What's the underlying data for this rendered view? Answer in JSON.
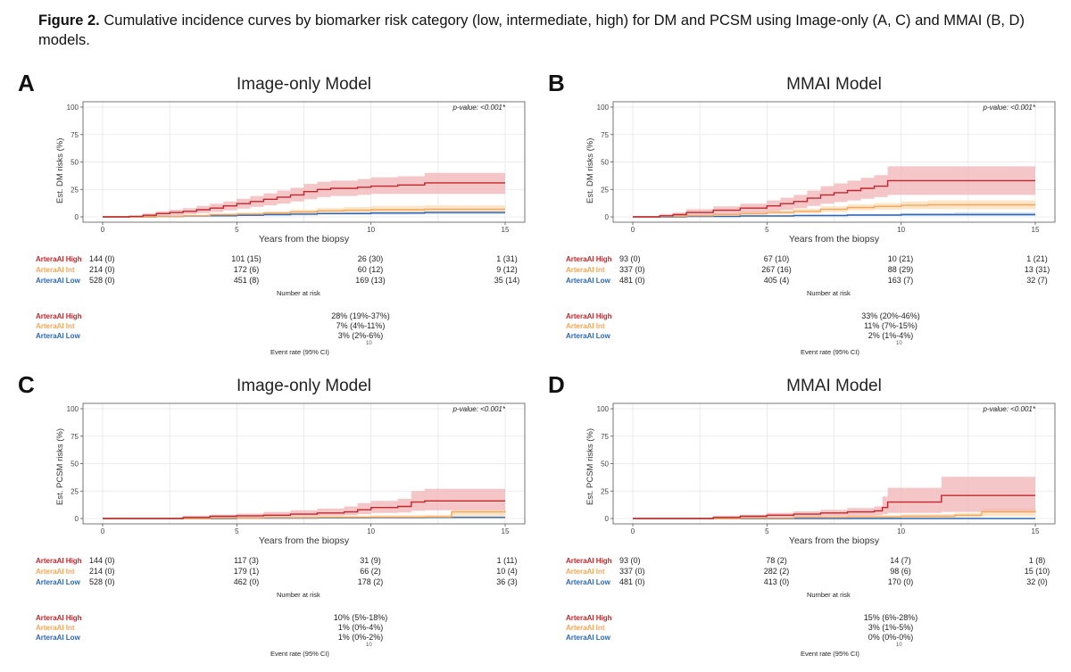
{
  "caption": {
    "bold": "Figure 2.",
    "text": " Cumulative incidence curves by biomarker risk category (low, intermediate, high) for DM and PCSM using Image-only (A, C) and MMAI (B, D) models."
  },
  "colors": {
    "high": "#c0282d",
    "high_band": "#f2b3b6",
    "int": "#f2a65a",
    "int_band": "#fbdcb6",
    "low": "#2f66b3",
    "low_band": "#b9cdea",
    "grid": "#e6e6e6",
    "axis": "#555555"
  },
  "common": {
    "xlabel": "Years from the biopsy",
    "risk_table_title": "Number at risk",
    "event_title": "Event rate (95% CI)",
    "event_tick": "10",
    "group_labels": [
      "ArteraAI High",
      "ArteraAI Int",
      "ArteraAI Low"
    ],
    "x_ticks": [
      "0",
      "5",
      "10",
      "15"
    ],
    "y_ticks": [
      "0",
      "25",
      "50",
      "75",
      "100"
    ]
  },
  "panels": [
    {
      "letter": "A",
      "title": "Image-only Model",
      "ylabel": "Est. DM risks (%)",
      "pvalue": "p-value: <0.001*",
      "risk_table": [
        [
          "144 (0)",
          "101 (15)",
          "26 (30)",
          "1 (31)"
        ],
        [
          "214 (0)",
          "172 (6)",
          "60 (12)",
          "9 (12)"
        ],
        [
          "528 (0)",
          "451 (8)",
          "169 (13)",
          "35 (14)"
        ]
      ],
      "event_rates": [
        "28% (19%-37%)",
        "7% (4%-11%)",
        "3% (2%-6%)"
      ]
    },
    {
      "letter": "B",
      "title": "MMAI Model",
      "ylabel": "Est. DM risks (%)",
      "pvalue": "p-value: <0.001*",
      "risk_table": [
        [
          "93 (0)",
          "67 (10)",
          "10 (21)",
          "1 (21)"
        ],
        [
          "337 (0)",
          "267 (16)",
          "88 (29)",
          "13 (31)"
        ],
        [
          "481 (0)",
          "405 (4)",
          "163 (7)",
          "32 (7)"
        ]
      ],
      "event_rates": [
        "33% (20%-46%)",
        "11% (7%-15%)",
        "2% (1%-4%)"
      ]
    },
    {
      "letter": "C",
      "title": "Image-only Model",
      "ylabel": "Est. PCSM risks (%)",
      "pvalue": "p-value: <0.001*",
      "risk_table": [
        [
          "144 (0)",
          "117 (3)",
          "31 (9)",
          "1 (11)"
        ],
        [
          "214 (0)",
          "179 (1)",
          "66 (2)",
          "10 (4)"
        ],
        [
          "528 (0)",
          "462 (0)",
          "178 (2)",
          "36 (3)"
        ]
      ],
      "event_rates": [
        "10% (5%-18%)",
        "1% (0%-4%)",
        "1% (0%-2%)"
      ]
    },
    {
      "letter": "D",
      "title": "MMAI Model",
      "ylabel": "Est. PCSM risks (%)",
      "pvalue": "p-value: <0.001*",
      "risk_table": [
        [
          "93 (0)",
          "78 (2)",
          "14 (7)",
          "1 (8)"
        ],
        [
          "337 (0)",
          "282 (2)",
          "98 (6)",
          "15 (10)"
        ],
        [
          "481 (0)",
          "413 (0)",
          "170 (0)",
          "32 (0)"
        ]
      ],
      "event_rates": [
        "15% (6%-28%)",
        "3% (1%-5%)",
        "0% (0%-0%)"
      ]
    }
  ],
  "chart_data": [
    {
      "type": "line",
      "title": "Image-only Model",
      "xlabel": "Years from the biopsy",
      "ylabel": "Est. DM risks (%)",
      "xlim": [
        0,
        15
      ],
      "ylim": [
        0,
        100
      ],
      "grid": true,
      "series": [
        {
          "name": "ArteraAI High",
          "x": [
            0,
            1,
            1.5,
            2,
            2.5,
            3,
            3.5,
            4,
            4.5,
            5,
            5.5,
            6,
            6.5,
            7,
            7.5,
            8,
            8.5,
            9,
            9.5,
            10,
            11,
            12,
            13,
            15
          ],
          "y": [
            0,
            0.5,
            1.5,
            3,
            4,
            5,
            6.5,
            8,
            10,
            12,
            14,
            16,
            18,
            20,
            23,
            25,
            26,
            26,
            27,
            28,
            29,
            31,
            31,
            31
          ],
          "lower": [
            0,
            0,
            0.5,
            1,
            1.5,
            2.5,
            3.5,
            4.5,
            6,
            7.5,
            9,
            10.5,
            12,
            14,
            16,
            18,
            19,
            19,
            20,
            21,
            21,
            21,
            21,
            21
          ],
          "upper": [
            0,
            1,
            3,
            5,
            6.5,
            8,
            10,
            12,
            14,
            16.5,
            19,
            21.5,
            24,
            26.5,
            30,
            32,
            33,
            33,
            34.5,
            36,
            37,
            40,
            40,
            40
          ]
        },
        {
          "name": "ArteraAI Int",
          "x": [
            0,
            2,
            3,
            4,
            5,
            6,
            7,
            8,
            9,
            10,
            12,
            15
          ],
          "y": [
            0,
            0.5,
            1,
            2,
            2.5,
            3.5,
            4.5,
            5.5,
            6,
            6.5,
            7,
            7
          ],
          "lower": [
            0,
            0,
            0.5,
            1,
            1.5,
            2,
            2.5,
            3.5,
            4,
            4.5,
            4.5,
            4.5
          ],
          "upper": [
            0,
            1,
            2,
            3,
            4,
            5,
            6.5,
            8,
            9,
            10,
            10.5,
            11
          ]
        },
        {
          "name": "ArteraAI Low",
          "x": [
            0,
            2,
            3,
            4,
            5,
            6,
            7,
            8,
            9,
            10,
            12,
            15
          ],
          "y": [
            0,
            0.3,
            0.7,
            1,
            1.5,
            2,
            2.5,
            3,
            3,
            3.5,
            4,
            4
          ],
          "lower": [
            0,
            0,
            0.3,
            0.5,
            0.8,
            1.2,
            1.5,
            2,
            2,
            2.2,
            2.5,
            2.5
          ],
          "upper": [
            0,
            0.7,
            1.2,
            1.7,
            2.3,
            3,
            3.5,
            4,
            4.3,
            5,
            5.5,
            6
          ]
        }
      ]
    },
    {
      "type": "line",
      "title": "MMAI Model",
      "xlabel": "Years from the biopsy",
      "ylabel": "Est. DM risks (%)",
      "xlim": [
        0,
        15
      ],
      "ylim": [
        0,
        100
      ],
      "grid": true,
      "series": [
        {
          "name": "ArteraAI High",
          "x": [
            0,
            1,
            1.5,
            2,
            3,
            4,
            5,
            5.5,
            6,
            6.5,
            7,
            7.5,
            8,
            8.5,
            9,
            9.5,
            10,
            12,
            15
          ],
          "y": [
            0,
            1,
            2,
            4,
            6,
            8,
            10,
            12,
            14,
            17,
            20,
            22,
            24,
            26,
            28,
            33,
            33,
            33,
            33
          ],
          "lower": [
            0,
            0,
            0.5,
            1.5,
            2.5,
            4,
            5,
            6.5,
            8,
            10,
            12,
            13.5,
            15,
            16.5,
            18,
            20,
            20,
            20,
            20
          ],
          "upper": [
            0,
            2.5,
            4,
            7,
            9.5,
            12,
            15,
            17.5,
            20,
            24,
            28,
            30.5,
            33,
            35.5,
            38,
            46,
            46,
            46,
            46
          ]
        },
        {
          "name": "ArteraAI Int",
          "x": [
            0,
            1,
            2,
            3,
            4,
            5,
            6,
            7,
            8,
            9,
            10,
            11,
            12,
            15
          ],
          "y": [
            0,
            0.5,
            1,
            2,
            3,
            4,
            5,
            7,
            8.5,
            9.5,
            10.5,
            11,
            11,
            11
          ],
          "lower": [
            0,
            0,
            0.5,
            1,
            1.5,
            2,
            3,
            4.5,
            6,
            6.5,
            7,
            7,
            7,
            7
          ],
          "upper": [
            0,
            1,
            2,
            3,
            4.5,
            6,
            7.5,
            9.5,
            11.5,
            12.5,
            14,
            15,
            15,
            15
          ]
        },
        {
          "name": "ArteraAI Low",
          "x": [
            0,
            2,
            4,
            6,
            8,
            10,
            12,
            15
          ],
          "y": [
            0,
            0.3,
            0.8,
            1.2,
            1.6,
            2,
            2,
            2
          ],
          "lower": [
            0,
            0,
            0.3,
            0.6,
            0.9,
            1,
            1,
            1
          ],
          "upper": [
            0,
            0.7,
            1.4,
            2,
            2.7,
            3.5,
            4,
            4
          ]
        }
      ]
    },
    {
      "type": "line",
      "title": "Image-only Model",
      "xlabel": "Years from the biopsy",
      "ylabel": "Est. PCSM risks (%)",
      "xlim": [
        0,
        15
      ],
      "ylim": [
        0,
        100
      ],
      "grid": true,
      "series": [
        {
          "name": "ArteraAI High",
          "x": [
            0,
            3,
            4,
            5,
            6,
            7,
            8,
            9,
            9.5,
            10,
            11,
            11.5,
            12,
            15
          ],
          "y": [
            0,
            1,
            2,
            2.5,
            3,
            4,
            5,
            6,
            8,
            10,
            11,
            15,
            16,
            16
          ],
          "lower": [
            0,
            0,
            0.5,
            1,
            1.5,
            2,
            2.5,
            3,
            4,
            5,
            5.5,
            7,
            7.5,
            7.5
          ],
          "upper": [
            0,
            2.5,
            3.5,
            4.5,
            6,
            7.5,
            9,
            11,
            14,
            16,
            18,
            25,
            27,
            27
          ]
        },
        {
          "name": "ArteraAI Int",
          "x": [
            0,
            4,
            6,
            8,
            10,
            12,
            13,
            15
          ],
          "y": [
            0,
            0.5,
            0.7,
            1,
            1.2,
            1.5,
            6,
            7
          ],
          "lower": [
            0,
            0,
            0.2,
            0.3,
            0.4,
            0.5,
            1,
            1
          ],
          "upper": [
            0,
            1.5,
            2,
            2.5,
            3,
            3.5,
            8,
            8
          ]
        },
        {
          "name": "ArteraAI Low",
          "x": [
            0,
            5,
            8,
            10,
            12,
            15
          ],
          "y": [
            0,
            0.3,
            0.6,
            0.8,
            1,
            1
          ],
          "lower": [
            0,
            0,
            0.2,
            0.3,
            0.4,
            0.4
          ],
          "upper": [
            0,
            0.8,
            1.2,
            1.6,
            2,
            2
          ]
        }
      ]
    },
    {
      "type": "line",
      "title": "MMAI Model",
      "xlabel": "Years from the biopsy",
      "ylabel": "Est. PCSM risks (%)",
      "xlim": [
        0,
        15
      ],
      "ylim": [
        0,
        100
      ],
      "grid": true,
      "series": [
        {
          "name": "ArteraAI High",
          "x": [
            0,
            3,
            4,
            5,
            6,
            7,
            8,
            9,
            9.3,
            9.5,
            11,
            11.5,
            15
          ],
          "y": [
            0,
            1,
            2,
            3,
            4,
            5,
            6,
            7,
            10,
            15,
            15,
            21,
            21
          ],
          "lower": [
            0,
            0,
            0.5,
            1,
            1.5,
            2,
            2.5,
            3,
            4,
            5,
            5,
            6,
            6
          ],
          "upper": [
            0,
            2.5,
            3.5,
            5,
            6.5,
            8,
            9.5,
            11,
            20,
            28,
            28,
            38,
            38
          ]
        },
        {
          "name": "ArteraAI Int",
          "x": [
            0,
            4,
            6,
            8,
            10,
            12,
            13,
            15
          ],
          "y": [
            0,
            0.5,
            1,
            1.5,
            2,
            3,
            6,
            7
          ],
          "lower": [
            0,
            0,
            0.2,
            0.5,
            0.8,
            1,
            2,
            2
          ],
          "upper": [
            0,
            1,
            2,
            3,
            4,
            5,
            9,
            9
          ]
        },
        {
          "name": "ArteraAI Low",
          "x": [
            0,
            15
          ],
          "y": [
            0,
            0
          ],
          "lower": [
            0,
            0
          ],
          "upper": [
            0,
            0
          ]
        }
      ]
    }
  ]
}
